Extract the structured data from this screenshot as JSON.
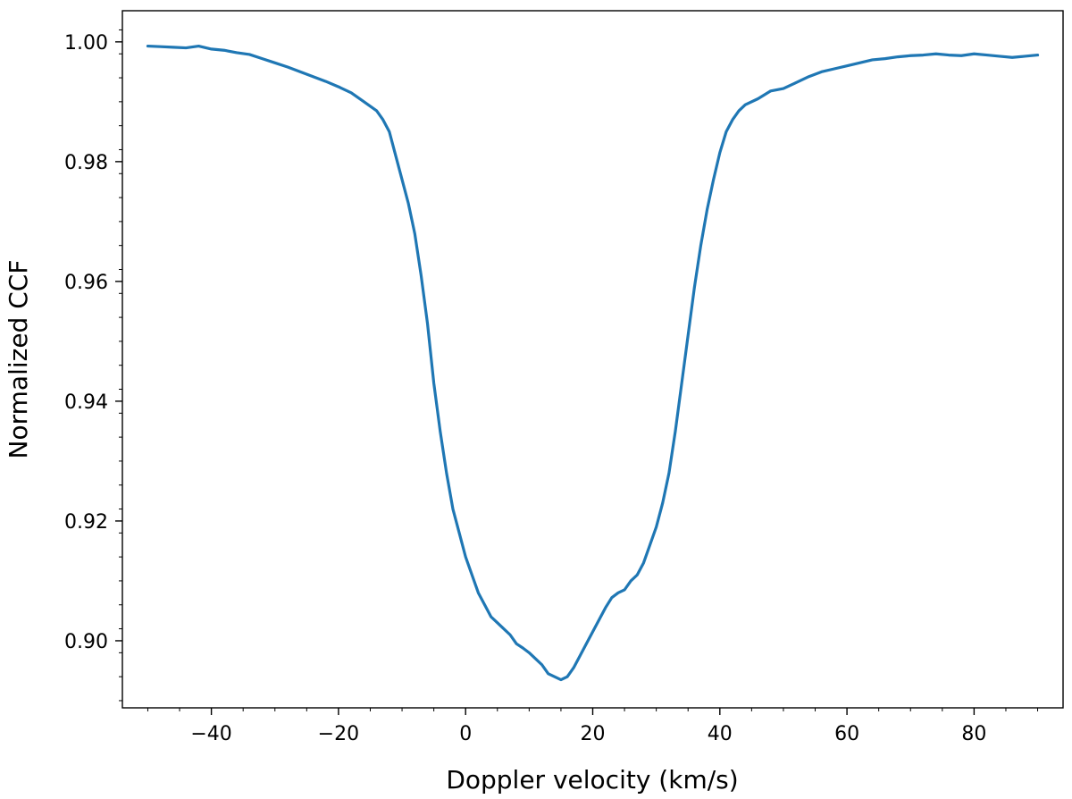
{
  "chart_data": {
    "type": "line",
    "title": "",
    "xlabel": "Doppler velocity (km/s)",
    "ylabel": "Normalized CCF",
    "xlim": [
      -54,
      94
    ],
    "ylim": [
      0.8888,
      1.0052
    ],
    "xticks": [
      -40,
      -20,
      0,
      20,
      40,
      60,
      80
    ],
    "xtick_labels": [
      "−40",
      "−20",
      "0",
      "20",
      "40",
      "60",
      "80"
    ],
    "yticks": [
      0.9,
      0.92,
      0.94,
      0.96,
      0.98,
      1.0
    ],
    "ytick_labels": [
      "0.90",
      "0.92",
      "0.94",
      "0.96",
      "0.98",
      "1.00"
    ],
    "grid": false,
    "series": [
      {
        "color": "#1f77b4",
        "x": [
          -50,
          -48,
          -46,
          -44,
          -42,
          -40,
          -38,
          -36,
          -34,
          -32,
          -30,
          -28,
          -26,
          -24,
          -22,
          -20,
          -18,
          -16,
          -14,
          -13,
          -12,
          -11,
          -10,
          -9,
          -8,
          -7,
          -6,
          -5,
          -4,
          -3,
          -2,
          -1,
          0,
          1,
          2,
          3,
          4,
          5,
          6,
          7,
          8,
          9,
          10,
          11,
          12,
          13,
          14,
          15,
          16,
          17,
          18,
          19,
          20,
          21,
          22,
          23,
          24,
          25,
          26,
          27,
          28,
          29,
          30,
          31,
          32,
          33,
          34,
          35,
          36,
          37,
          38,
          39,
          40,
          41,
          42,
          43,
          44,
          46,
          48,
          50,
          52,
          54,
          56,
          58,
          60,
          62,
          64,
          66,
          68,
          70,
          72,
          74,
          76,
          78,
          80,
          82,
          84,
          86,
          88,
          90
        ],
        "y": [
          0.9993,
          0.9992,
          0.9991,
          0.999,
          0.9993,
          0.9988,
          0.9986,
          0.9982,
          0.9979,
          0.9972,
          0.9965,
          0.9958,
          0.995,
          0.9942,
          0.9934,
          0.9925,
          0.9915,
          0.99,
          0.9885,
          0.987,
          0.985,
          0.981,
          0.977,
          0.973,
          0.968,
          0.961,
          0.953,
          0.943,
          0.935,
          0.928,
          0.922,
          0.918,
          0.914,
          0.911,
          0.908,
          0.906,
          0.904,
          0.903,
          0.902,
          0.901,
          0.8995,
          0.8988,
          0.898,
          0.897,
          0.896,
          0.8945,
          0.894,
          0.8935,
          0.894,
          0.8955,
          0.8975,
          0.8995,
          0.9015,
          0.9035,
          0.9055,
          0.9072,
          0.908,
          0.9085,
          0.91,
          0.911,
          0.913,
          0.916,
          0.919,
          0.923,
          0.928,
          0.935,
          0.943,
          0.951,
          0.959,
          0.966,
          0.972,
          0.977,
          0.9815,
          0.985,
          0.987,
          0.9885,
          0.9895,
          0.9905,
          0.9918,
          0.9922,
          0.9932,
          0.9942,
          0.995,
          0.9955,
          0.996,
          0.9965,
          0.997,
          0.9972,
          0.9975,
          0.9977,
          0.9978,
          0.998,
          0.9978,
          0.9977,
          0.998,
          0.9978,
          0.9976,
          0.9974,
          0.9976,
          0.9978
        ]
      }
    ]
  }
}
